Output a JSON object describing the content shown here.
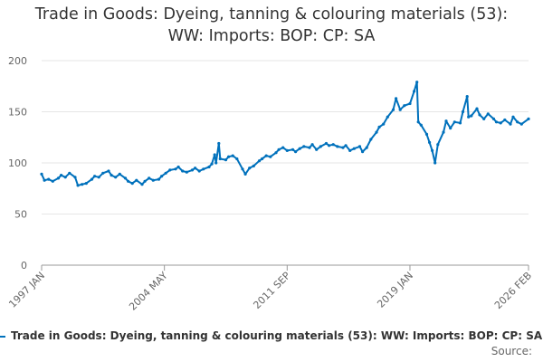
{
  "chart_data": {
    "type": "line",
    "title_line1": "Trade in Goods: Dyeing, tanning & colouring materials (53):",
    "title_line2": "WW: Imports: BOP: CP: SA",
    "x_ticks": [
      "1997 JAN",
      "2004 MAY",
      "2011 SEP",
      "2019 JAN",
      "2026 FEB"
    ],
    "y_ticks": [
      0,
      50,
      100,
      150,
      200
    ],
    "ylim": [
      0,
      200
    ],
    "xlim": [
      "1997-01",
      "2026-02"
    ],
    "grid": true,
    "legend_position": "bottom",
    "color": "#0071bc",
    "series": [
      {
        "name": "Trade in Goods: Dyeing, tanning & colouring materials (53): WW: Imports: BOP: CP: SA",
        "points": [
          [
            "1997-01",
            89
          ],
          [
            "1997-03",
            83
          ],
          [
            "1997-06",
            84
          ],
          [
            "1997-09",
            82
          ],
          [
            "1998-01",
            85
          ],
          [
            "1998-03",
            88
          ],
          [
            "1998-06",
            86
          ],
          [
            "1998-09",
            90
          ],
          [
            "1999-01",
            86
          ],
          [
            "1999-03",
            78
          ],
          [
            "1999-06",
            79
          ],
          [
            "1999-09",
            80
          ],
          [
            "2000-01",
            84
          ],
          [
            "2000-03",
            87
          ],
          [
            "2000-06",
            86
          ],
          [
            "2000-09",
            90
          ],
          [
            "2001-01",
            92
          ],
          [
            "2001-03",
            88
          ],
          [
            "2001-06",
            86
          ],
          [
            "2001-09",
            89
          ],
          [
            "2002-01",
            85
          ],
          [
            "2002-03",
            82
          ],
          [
            "2002-06",
            80
          ],
          [
            "2002-09",
            83
          ],
          [
            "2003-01",
            79
          ],
          [
            "2003-03",
            82
          ],
          [
            "2003-06",
            85
          ],
          [
            "2003-09",
            83
          ],
          [
            "2004-01",
            84
          ],
          [
            "2004-03",
            87
          ],
          [
            "2004-06",
            90
          ],
          [
            "2004-09",
            93
          ],
          [
            "2005-01",
            94
          ],
          [
            "2005-03",
            96
          ],
          [
            "2005-06",
            92
          ],
          [
            "2005-09",
            91
          ],
          [
            "2006-01",
            93
          ],
          [
            "2006-03",
            95
          ],
          [
            "2006-06",
            92
          ],
          [
            "2006-09",
            94
          ],
          [
            "2007-01",
            96
          ],
          [
            "2007-03",
            99
          ],
          [
            "2007-05",
            108
          ],
          [
            "2007-06",
            100
          ],
          [
            "2007-08",
            119
          ],
          [
            "2007-09",
            104
          ],
          [
            "2008-01",
            103
          ],
          [
            "2008-03",
            106
          ],
          [
            "2008-06",
            107
          ],
          [
            "2008-09",
            104
          ],
          [
            "2009-01",
            94
          ],
          [
            "2009-03",
            89
          ],
          [
            "2009-06",
            95
          ],
          [
            "2009-09",
            97
          ],
          [
            "2010-01",
            102
          ],
          [
            "2010-03",
            104
          ],
          [
            "2010-06",
            107
          ],
          [
            "2010-09",
            106
          ],
          [
            "2011-01",
            110
          ],
          [
            "2011-03",
            113
          ],
          [
            "2011-06",
            115
          ],
          [
            "2011-09",
            112
          ],
          [
            "2012-01",
            113
          ],
          [
            "2012-03",
            111
          ],
          [
            "2012-06",
            114
          ],
          [
            "2012-09",
            116
          ],
          [
            "2013-01",
            115
          ],
          [
            "2013-03",
            118
          ],
          [
            "2013-06",
            113
          ],
          [
            "2013-09",
            116
          ],
          [
            "2014-01",
            119
          ],
          [
            "2014-03",
            117
          ],
          [
            "2014-06",
            118
          ],
          [
            "2014-09",
            116
          ],
          [
            "2015-01",
            115
          ],
          [
            "2015-03",
            117
          ],
          [
            "2015-06",
            112
          ],
          [
            "2015-09",
            114
          ],
          [
            "2016-01",
            116
          ],
          [
            "2016-03",
            111
          ],
          [
            "2016-06",
            115
          ],
          [
            "2016-09",
            123
          ],
          [
            "2017-01",
            130
          ],
          [
            "2017-03",
            135
          ],
          [
            "2017-06",
            138
          ],
          [
            "2017-09",
            145
          ],
          [
            "2018-01",
            152
          ],
          [
            "2018-03",
            163
          ],
          [
            "2018-06",
            152
          ],
          [
            "2018-09",
            156
          ],
          [
            "2019-01",
            158
          ],
          [
            "2019-04",
            170
          ],
          [
            "2019-06",
            179
          ],
          [
            "2019-07",
            140
          ],
          [
            "2019-09",
            137
          ],
          [
            "2020-01",
            128
          ],
          [
            "2020-03",
            120
          ],
          [
            "2020-05",
            112
          ],
          [
            "2020-07",
            100
          ],
          [
            "2020-09",
            118
          ],
          [
            "2021-01",
            130
          ],
          [
            "2021-03",
            141
          ],
          [
            "2021-06",
            134
          ],
          [
            "2021-09",
            140
          ],
          [
            "2022-01",
            139
          ],
          [
            "2022-03",
            150
          ],
          [
            "2022-06",
            165
          ],
          [
            "2022-07",
            145
          ],
          [
            "2022-09",
            146
          ],
          [
            "2023-01",
            153
          ],
          [
            "2023-03",
            147
          ],
          [
            "2023-06",
            143
          ],
          [
            "2023-09",
            148
          ],
          [
            "2024-01",
            143
          ],
          [
            "2024-03",
            140
          ],
          [
            "2024-06",
            139
          ],
          [
            "2024-09",
            142
          ],
          [
            "2025-01",
            138
          ],
          [
            "2025-03",
            145
          ],
          [
            "2025-06",
            140
          ],
          [
            "2025-09",
            138
          ],
          [
            "2026-02",
            143
          ]
        ]
      }
    ]
  },
  "legend": {
    "label": "Trade in Goods: Dyeing, tanning & colouring materials (53): WW: Imports: BOP: CP: SA"
  },
  "source": {
    "label": "Source:"
  }
}
